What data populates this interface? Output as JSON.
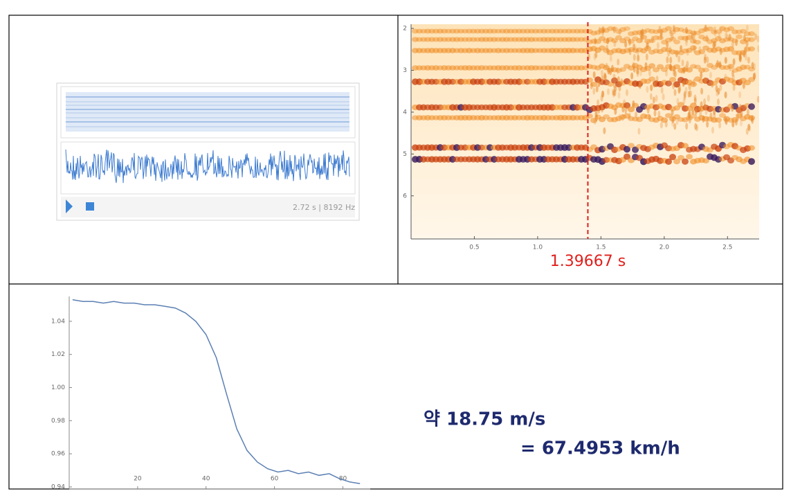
{
  "audio_player": {
    "info": "2.72 s | 8192 Hz"
  },
  "chart_data": [
    {
      "type": "spectrogram",
      "xlim": [
        0,
        2.75
      ],
      "xticks": [
        0.5,
        {
          "value": 1,
          "label": "1.0"
        },
        1.5,
        {
          "value": 2,
          "label": "2.0"
        },
        2.5
      ],
      "ylim": [
        1.9,
        7.03
      ],
      "yticks": [
        2,
        3,
        4,
        5,
        6
      ],
      "y_inverted": true,
      "marker": {
        "value": 1.39667,
        "label": "1.39667 s",
        "color": "#e0201c"
      }
    },
    {
      "type": "line",
      "color": "#5b7fb3",
      "x": [
        1,
        4,
        7,
        10,
        13,
        16,
        19,
        22,
        25,
        28,
        31,
        34,
        37,
        40,
        43,
        46,
        49,
        52,
        55,
        58,
        61,
        64,
        67,
        70,
        73,
        76,
        79,
        82,
        85
      ],
      "values": [
        1.053,
        1.052,
        1.052,
        1.051,
        1.052,
        1.051,
        1.051,
        1.05,
        1.05,
        1.049,
        1.048,
        1.045,
        1.04,
        1.032,
        1.018,
        0.996,
        0.975,
        0.962,
        0.955,
        0.951,
        0.949,
        0.95,
        0.948,
        0.949,
        0.947,
        0.948,
        0.945,
        0.943,
        0.942
      ],
      "xlim": [
        0,
        88
      ],
      "xticks": [
        20,
        40,
        60,
        80
      ],
      "ylim": [
        0.94,
        1.055
      ],
      "yticks": [
        0.94,
        0.96,
        0.98,
        {
          "value": 1,
          "label": "1.00"
        },
        1.02,
        1.04
      ]
    }
  ],
  "result": {
    "speed": "약 18.75 m/s",
    "converted": "= 67.4953 km/h"
  }
}
